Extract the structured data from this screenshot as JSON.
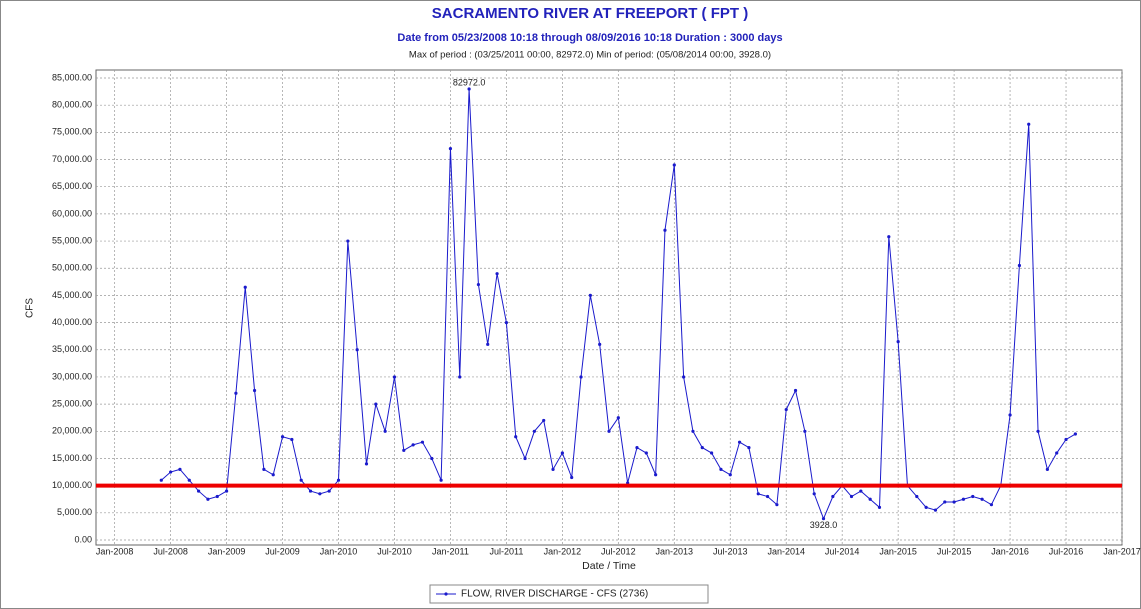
{
  "chart_data": {
    "type": "line",
    "title": "SACRAMENTO RIVER AT FREEPORT ( FPT )",
    "subtitle": "Date from 05/23/2008 10:18 through 08/09/2016 10:18 Duration : 3000 days",
    "note": "Max of period : (03/25/2011 00:00, 82972.0)  Min of period: (05/08/2014 00:00,  3928.0)",
    "xlabel": "Date / Time",
    "ylabel": "CFS",
    "x": [
      "2008-06",
      "2008-07",
      "2008-08",
      "2008-09",
      "2008-10",
      "2008-11",
      "2008-12",
      "2009-01",
      "2009-02",
      "2009-03",
      "2009-04",
      "2009-05",
      "2009-06",
      "2009-07",
      "2009-08",
      "2009-09",
      "2009-10",
      "2009-11",
      "2009-12",
      "2010-01",
      "2010-02",
      "2010-03",
      "2010-04",
      "2010-05",
      "2010-06",
      "2010-07",
      "2010-08",
      "2010-09",
      "2010-10",
      "2010-11",
      "2010-12",
      "2011-01",
      "2011-02",
      "2011-03",
      "2011-04",
      "2011-05",
      "2011-06",
      "2011-07",
      "2011-08",
      "2011-09",
      "2011-10",
      "2011-11",
      "2011-12",
      "2012-01",
      "2012-02",
      "2012-03",
      "2012-04",
      "2012-05",
      "2012-06",
      "2012-07",
      "2012-08",
      "2012-09",
      "2012-10",
      "2012-11",
      "2012-12",
      "2013-01",
      "2013-02",
      "2013-03",
      "2013-04",
      "2013-05",
      "2013-06",
      "2013-07",
      "2013-08",
      "2013-09",
      "2013-10",
      "2013-11",
      "2013-12",
      "2014-01",
      "2014-02",
      "2014-03",
      "2014-04",
      "2014-05",
      "2014-06",
      "2014-07",
      "2014-08",
      "2014-09",
      "2014-10",
      "2014-11",
      "2014-12",
      "2015-01",
      "2015-02",
      "2015-03",
      "2015-04",
      "2015-05",
      "2015-06",
      "2015-07",
      "2015-08",
      "2015-09",
      "2015-10",
      "2015-11",
      "2015-12",
      "2016-01",
      "2016-02",
      "2016-03",
      "2016-04",
      "2016-05",
      "2016-06",
      "2016-07",
      "2016-08"
    ],
    "series": [
      {
        "name": "FLOW, RIVER DISCHARGE - CFS (2736)",
        "color": "#1a1acc",
        "values": [
          11000,
          12500,
          13000,
          11000,
          9000,
          7500,
          8000,
          9000,
          27000,
          46500,
          27500,
          13000,
          12000,
          19000,
          18500,
          11000,
          9000,
          8500,
          9000,
          11000,
          55000,
          35000,
          14000,
          25000,
          20000,
          30000,
          16500,
          17500,
          18000,
          15000,
          11000,
          72000,
          30000,
          82972,
          47000,
          36000,
          49000,
          40000,
          19000,
          15000,
          20000,
          22000,
          13000,
          16000,
          11500,
          30000,
          45000,
          36000,
          20000,
          22500,
          10500,
          17000,
          16000,
          12000,
          57000,
          69000,
          30000,
          20000,
          17000,
          16000,
          13000,
          12000,
          18000,
          17000,
          8500,
          8000,
          6500,
          24000,
          27500,
          20000,
          8500,
          3928,
          8000,
          10000,
          8000,
          9000,
          7500,
          6000,
          55800,
          36500,
          10000,
          8000,
          6000,
          5500,
          7000,
          7000,
          7500,
          8000,
          7500,
          6500,
          10000,
          23000,
          50500,
          76500,
          20000,
          13000,
          16000,
          18500,
          19500
        ]
      }
    ],
    "annotations": [
      {
        "x": "2011-03",
        "value": 82972,
        "label": "82972.0"
      },
      {
        "x": "2014-05",
        "value": 3928,
        "label": "3928.0"
      }
    ],
    "threshold": {
      "value": 10000,
      "color": "#ee0000"
    },
    "xlim": [
      "2007-11",
      "2017-01"
    ],
    "xticks": [
      {
        "value": "2008-01",
        "label": "Jan-2008"
      },
      {
        "value": "2008-07",
        "label": "Jul-2008"
      },
      {
        "value": "2009-01",
        "label": "Jan-2009"
      },
      {
        "value": "2009-07",
        "label": "Jul-2009"
      },
      {
        "value": "2010-01",
        "label": "Jan-2010"
      },
      {
        "value": "2010-07",
        "label": "Jul-2010"
      },
      {
        "value": "2011-01",
        "label": "Jan-2011"
      },
      {
        "value": "2011-07",
        "label": "Jul-2011"
      },
      {
        "value": "2012-01",
        "label": "Jan-2012"
      },
      {
        "value": "2012-07",
        "label": "Jul-2012"
      },
      {
        "value": "2013-01",
        "label": "Jan-2013"
      },
      {
        "value": "2013-07",
        "label": "Jul-2013"
      },
      {
        "value": "2014-01",
        "label": "Jan-2014"
      },
      {
        "value": "2014-07",
        "label": "Jul-2014"
      },
      {
        "value": "2015-01",
        "label": "Jan-2015"
      },
      {
        "value": "2015-07",
        "label": "Jul-2015"
      },
      {
        "value": "2016-01",
        "label": "Jan-2016"
      },
      {
        "value": "2016-07",
        "label": "Jul-2016"
      },
      {
        "value": "2017-01",
        "label": "Jan-2017"
      }
    ],
    "ylim": [
      0,
      85000
    ],
    "yticks": [
      {
        "value": 0,
        "label": "0.00"
      },
      {
        "value": 5000,
        "label": "5,000.00"
      },
      {
        "value": 10000,
        "label": "10,000.00"
      },
      {
        "value": 15000,
        "label": "15,000.00"
      },
      {
        "value": 20000,
        "label": "20,000.00"
      },
      {
        "value": 25000,
        "label": "25,000.00"
      },
      {
        "value": 30000,
        "label": "30,000.00"
      },
      {
        "value": 35000,
        "label": "35,000.00"
      },
      {
        "value": 40000,
        "label": "40,000.00"
      },
      {
        "value": 45000,
        "label": "45,000.00"
      },
      {
        "value": 50000,
        "label": "50,000.00"
      },
      {
        "value": 55000,
        "label": "55,000.00"
      },
      {
        "value": 60000,
        "label": "60,000.00"
      },
      {
        "value": 65000,
        "label": "65,000.00"
      },
      {
        "value": 70000,
        "label": "70,000.00"
      },
      {
        "value": 75000,
        "label": "75,000.00"
      },
      {
        "value": 80000,
        "label": "80,000.00"
      },
      {
        "value": 85000,
        "label": "85,000.00"
      }
    ],
    "grid": true,
    "legend": "bottom"
  }
}
